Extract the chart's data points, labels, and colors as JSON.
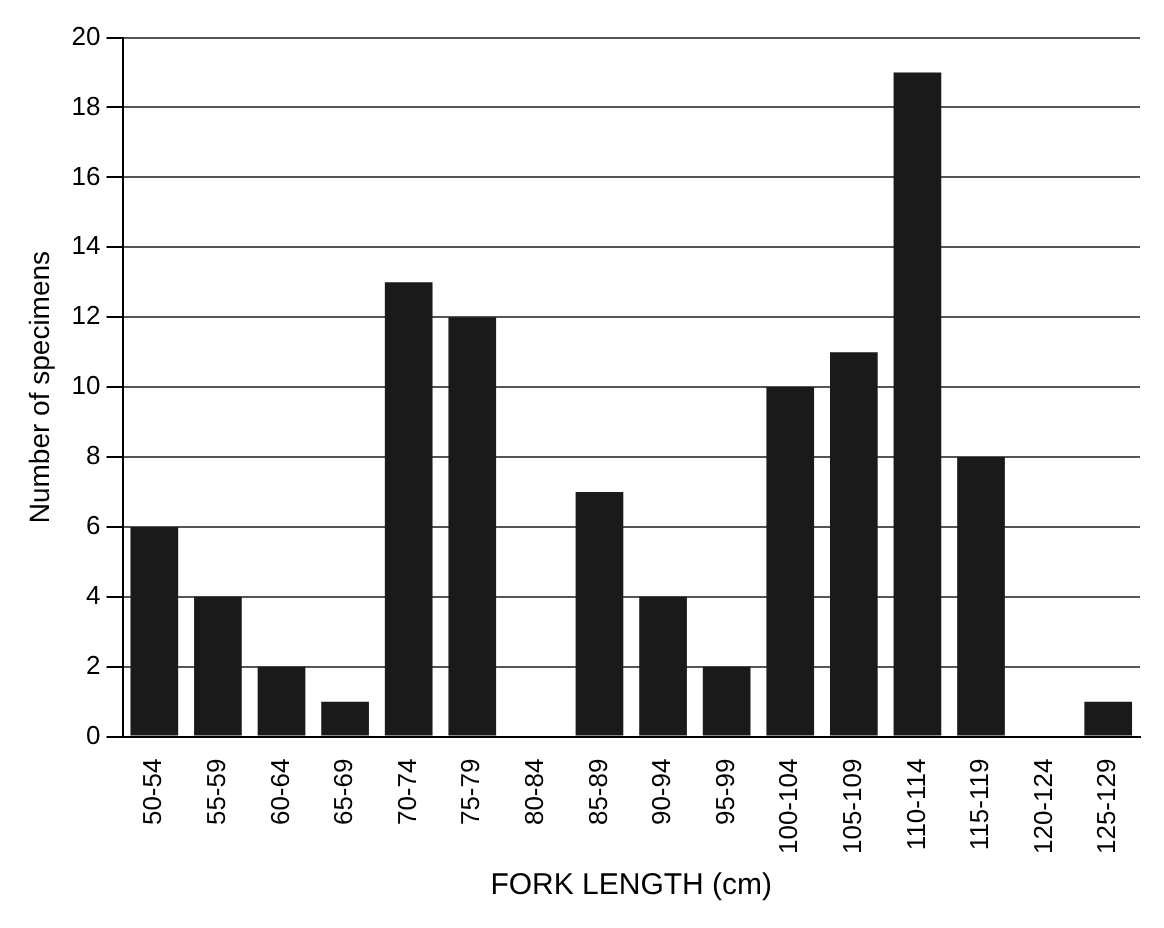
{
  "chart_data": {
    "type": "bar",
    "xlabel": "FORK LENGTH (cm)",
    "ylabel": "Number of specimens",
    "categories": [
      "50-54",
      "55-59",
      "60-64",
      "65-69",
      "70-74",
      "75-79",
      "80-84",
      "85-89",
      "90-94",
      "95-99",
      "100-104",
      "105-109",
      "110-114",
      "115-119",
      "120-124",
      "125-129"
    ],
    "values": [
      6,
      4,
      2,
      1,
      13,
      12,
      0,
      7,
      4,
      2,
      10,
      11,
      19,
      8,
      0,
      1
    ],
    "color": "#1a1a1a",
    "ylim": [
      0,
      20
    ],
    "yticks": [
      0,
      2,
      4,
      6,
      8,
      10,
      12,
      14,
      16,
      18,
      20
    ],
    "grid": "y",
    "legend": false
  }
}
